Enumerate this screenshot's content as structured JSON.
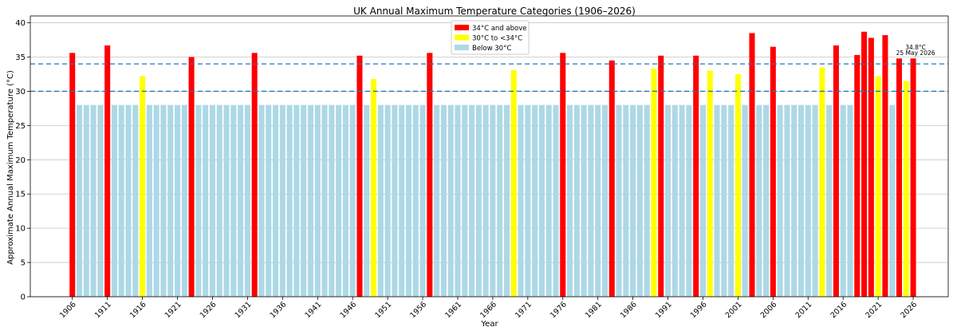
{
  "chart_data": {
    "type": "bar",
    "title": "UK Annual Maximum Temperature Categories (1906–2026)",
    "xlabel": "Year",
    "ylabel": "Approximate Annual Maximum Temperature (°C)",
    "ylim": [
      0,
      41
    ],
    "xlim": [
      1900,
      2031
    ],
    "yticks": [
      0,
      5,
      10,
      15,
      20,
      25,
      30,
      35,
      40
    ],
    "xticks": [
      1906,
      1911,
      1916,
      1921,
      1926,
      1931,
      1936,
      1941,
      1946,
      1951,
      1956,
      1961,
      1966,
      1971,
      1976,
      1981,
      1986,
      1991,
      1996,
      2001,
      2006,
      2011,
      2016,
      2021,
      2026
    ],
    "grid": "horizontal",
    "legend_position": "top-center",
    "reference_lines": [
      30,
      34
    ],
    "reference_line_color": "#1f77b4",
    "background_value": 28,
    "legend": [
      {
        "label": "34°C and above",
        "color": "#ff0000"
      },
      {
        "label": "30°C to <34°C",
        "color": "#ffff00"
      },
      {
        "label": "Below 30°C",
        "color": "#add8e6"
      }
    ],
    "highlighted_years": [
      {
        "year": 1906,
        "value": 35.6,
        "category": "red"
      },
      {
        "year": 1911,
        "value": 36.7,
        "category": "red"
      },
      {
        "year": 1916,
        "value": 32.2,
        "category": "yellow"
      },
      {
        "year": 1923,
        "value": 35.0,
        "category": "red"
      },
      {
        "year": 1932,
        "value": 35.6,
        "category": "red"
      },
      {
        "year": 1947,
        "value": 35.2,
        "category": "red"
      },
      {
        "year": 1949,
        "value": 31.8,
        "category": "yellow"
      },
      {
        "year": 1957,
        "value": 35.6,
        "category": "red"
      },
      {
        "year": 1969,
        "value": 33.1,
        "category": "yellow"
      },
      {
        "year": 1976,
        "value": 35.6,
        "category": "red"
      },
      {
        "year": 1983,
        "value": 34.5,
        "category": "red"
      },
      {
        "year": 1989,
        "value": 33.3,
        "category": "yellow"
      },
      {
        "year": 1990,
        "value": 35.2,
        "category": "red"
      },
      {
        "year": 1995,
        "value": 35.2,
        "category": "red"
      },
      {
        "year": 1997,
        "value": 33.0,
        "category": "yellow"
      },
      {
        "year": 2001,
        "value": 32.5,
        "category": "yellow"
      },
      {
        "year": 2003,
        "value": 38.5,
        "category": "red"
      },
      {
        "year": 2006,
        "value": 36.5,
        "category": "red"
      },
      {
        "year": 2013,
        "value": 33.5,
        "category": "yellow"
      },
      {
        "year": 2015,
        "value": 36.7,
        "category": "red"
      },
      {
        "year": 2018,
        "value": 35.3,
        "category": "red"
      },
      {
        "year": 2019,
        "value": 38.7,
        "category": "red"
      },
      {
        "year": 2020,
        "value": 37.8,
        "category": "red"
      },
      {
        "year": 2021,
        "value": 32.2,
        "category": "yellow"
      },
      {
        "year": 2022,
        "value": 38.2,
        "category": "red"
      },
      {
        "year": 2024,
        "value": 34.8,
        "category": "red"
      },
      {
        "year": 2025,
        "value": 31.5,
        "category": "yellow"
      },
      {
        "year": 2026,
        "value": 34.8,
        "category": "red"
      }
    ],
    "annotation": {
      "year": 2026,
      "value": 34.8,
      "line1": "34.8°C",
      "line2": "25 May 2026"
    }
  }
}
